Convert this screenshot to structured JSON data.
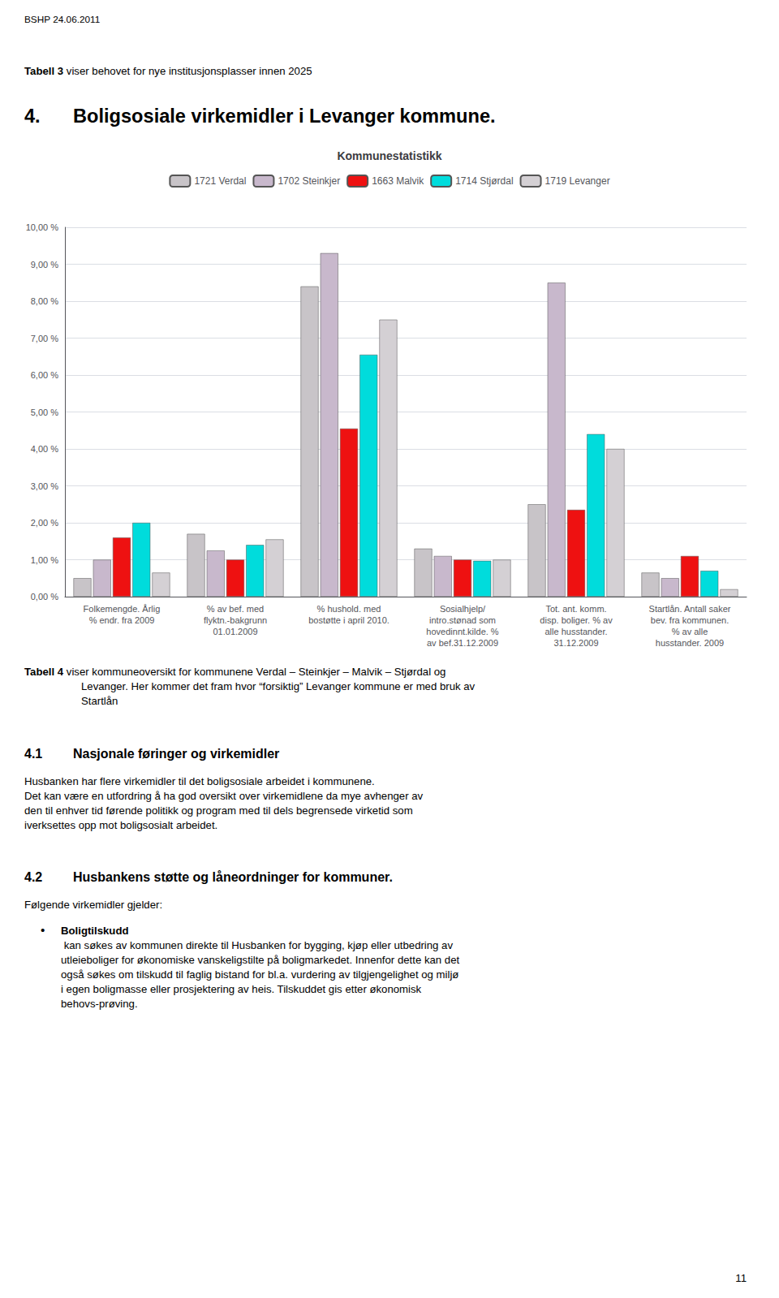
{
  "chart_data": {
    "type": "bar",
    "title": "Kommunestatistikk",
    "categories": [
      "Folkemengde. Årlig\n% endr. fra 2009",
      "% av bef. med\nflyktn.-bakgrunn\n01.01.2009",
      "% hushold. med\nbostøtte i april 2010.",
      "Sosialhjelp/\nintro.stønad som\nhovedinnt.kilde. %\nav bef.31.12.2009",
      "Tot. ant. komm.\ndisp. boliger. % av\nalle husstander.\n31.12.2009",
      "Startlån. Antall saker\nbev. fra kommunen.\n% av alle\nhusstander. 2009"
    ],
    "series": [
      {
        "name": "1721 Verdal",
        "color": "#c8c4c8",
        "values": [
          0.5,
          1.7,
          8.4,
          1.3,
          2.5,
          0.65
        ]
      },
      {
        "name": "1702 Steinkjer",
        "color": "#c8b8cc",
        "values": [
          1.0,
          1.25,
          9.3,
          1.1,
          8.5,
          0.5
        ]
      },
      {
        "name": "1663 Malvik",
        "color": "#ee1111",
        "values": [
          1.6,
          1.0,
          4.55,
          1.0,
          2.35,
          1.1
        ]
      },
      {
        "name": "1714 Stjørdal",
        "color": "#00dcdc",
        "values": [
          2.0,
          1.4,
          6.55,
          0.97,
          4.4,
          0.7
        ]
      },
      {
        "name": "1719 Levanger",
        "color": "#d4d0d4",
        "values": [
          0.65,
          1.55,
          7.5,
          1.0,
          4.0,
          0.2
        ]
      }
    ],
    "ylim": [
      0.0,
      10.0
    ],
    "yticks": [
      {
        "value": 0.0,
        "label": "0,00 %"
      },
      {
        "value": 1.0,
        "label": "1,00 %"
      },
      {
        "value": 2.0,
        "label": "2,00 %"
      },
      {
        "value": 3.0,
        "label": "3,00 %"
      },
      {
        "value": 4.0,
        "label": "4,00 %"
      },
      {
        "value": 5.0,
        "label": "5,00 %"
      },
      {
        "value": 6.0,
        "label": "6,00 %"
      },
      {
        "value": 7.0,
        "label": "7,00 %"
      },
      {
        "value": 8.0,
        "label": "8,00 %"
      },
      {
        "value": 9.0,
        "label": "9,00 %"
      },
      {
        "value": 10.0,
        "label": "10,00 %"
      }
    ],
    "grid": true,
    "legend": "top",
    "annotations": [
      "BSHP 24.06.2011",
      "Tabell 3",
      " viser behovet for nye institusjonsplasser innen 2025",
      "4.",
      "Boligsosiale virkemidler i Levanger kommune.",
      "Tabell 4",
      " viser kommuneoversikt for kommunene Verdal – Steinkjer – Malvik – Stjørdal og",
      "Levanger. Her kommer det fram hvor “forsiktig” Levanger kommune er med bruk av",
      "Startlån",
      "4.1",
      "Nasjonale føringer og virkemidler",
      "Husbanken har flere virkemidler til det boligsosiale arbeidet i kommunene.",
      "Det kan være en utfordring å ha god oversikt over virkemidlene da mye avhenger av",
      "den til enhver tid førende politikk og program med til dels begrensede virketid som",
      "iverksettes opp mot boligsosialt arbeidet.",
      "4.2",
      "Husbankens støtte og låneordninger for kommuner.",
      "Følgende virkemidler gjelder:",
      "•",
      "Boligtilskudd",
      " kan søkes av kommunen direkte til Husbanken for bygging, kjøp eller utbedring av",
      "utleieboliger for økonomiske vanskeligstilte på boligmarkedet. Innenfor dette kan det",
      "også søkes om tilskudd til faglig bistand for bl.a. vurdering av tilgjengelighet og miljø",
      "i egen boligmasse eller prosjektering av heis. Tilskuddet gis etter økonomisk",
      "behovs-prøving.",
      "11"
    ]
  }
}
